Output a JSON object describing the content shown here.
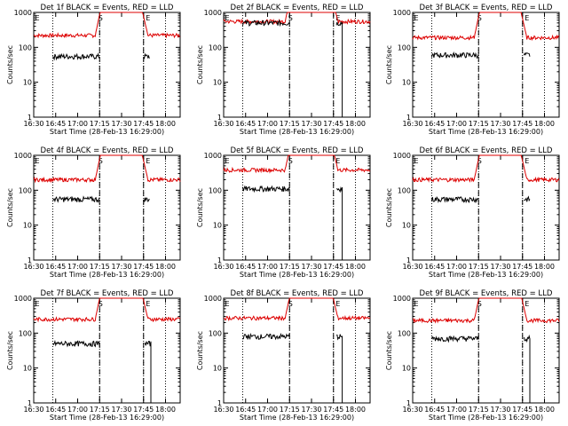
{
  "chart_data": {
    "type": "line",
    "x_tick_labels": [
      "16:30",
      "16:45",
      "17:00",
      "17:15",
      "17:30",
      "17:45",
      "18:00"
    ],
    "x_ticks_minutes": [
      0,
      15,
      30,
      45,
      60,
      75,
      90
    ],
    "xlim_minutes": [
      0,
      100
    ],
    "xlabel": "Start Time (28-Feb-13 16:29:00)",
    "ylabel": "Counts/sec",
    "yscale": "log",
    "ylim": [
      1,
      1000
    ],
    "y_tick_labels": [
      "1",
      "10",
      "100",
      "1000"
    ],
    "y_tick_values": [
      1,
      10,
      100,
      1000
    ],
    "series_colors": {
      "events": "#000000",
      "lld": "#dd0000"
    },
    "markers": {
      "S": 45,
      "E1": 0,
      "E2": 75
    },
    "panels": [
      {
        "title": "Det 1f BLACK = Events, RED = LLD",
        "lld_base": 220,
        "ev_base": 55,
        "ev_gap": [
          45,
          75
        ],
        "ev_tail_drop": false,
        "lld_peak": true
      },
      {
        "title": "Det 2f BLACK = Events, RED = LLD",
        "lld_base": 550,
        "ev_base": 500,
        "ev_gap": [
          45,
          77
        ],
        "ev_tail_drop": true,
        "lld_peak": true
      },
      {
        "title": "Det 3f BLACK = Events, RED = LLD",
        "lld_base": 190,
        "ev_base": 60,
        "ev_gap": [
          45,
          76
        ],
        "ev_tail_drop": false,
        "lld_peak": true
      },
      {
        "title": "Det 4f BLACK = Events, RED = LLD",
        "lld_base": 200,
        "ev_base": 55,
        "ev_gap": [
          45,
          75
        ],
        "ev_tail_drop": false,
        "lld_peak": true
      },
      {
        "title": "Det 5f BLACK = Events, RED = LLD",
        "lld_base": 380,
        "ev_base": 110,
        "ev_gap": [
          45,
          77
        ],
        "ev_tail_drop": true,
        "lld_peak": true
      },
      {
        "title": "Det 6f BLACK = Events, RED = LLD",
        "lld_base": 200,
        "ev_base": 55,
        "ev_gap": [
          45,
          76
        ],
        "ev_tail_drop": false,
        "lld_peak": true
      },
      {
        "title": "Det 7f BLACK = Events, RED = LLD",
        "lld_base": 250,
        "ev_base": 50,
        "ev_gap": [
          45,
          76
        ],
        "ev_tail_drop": true,
        "lld_peak": true
      },
      {
        "title": "Det 8f BLACK = Events, RED = LLD",
        "lld_base": 270,
        "ev_base": 80,
        "ev_gap": [
          45,
          77
        ],
        "ev_tail_drop": true,
        "lld_peak": true
      },
      {
        "title": "Det 9f BLACK = Events, RED = LLD",
        "lld_base": 230,
        "ev_base": 70,
        "ev_gap": [
          45,
          76
        ],
        "ev_tail_drop": true,
        "lld_peak": true
      }
    ]
  }
}
